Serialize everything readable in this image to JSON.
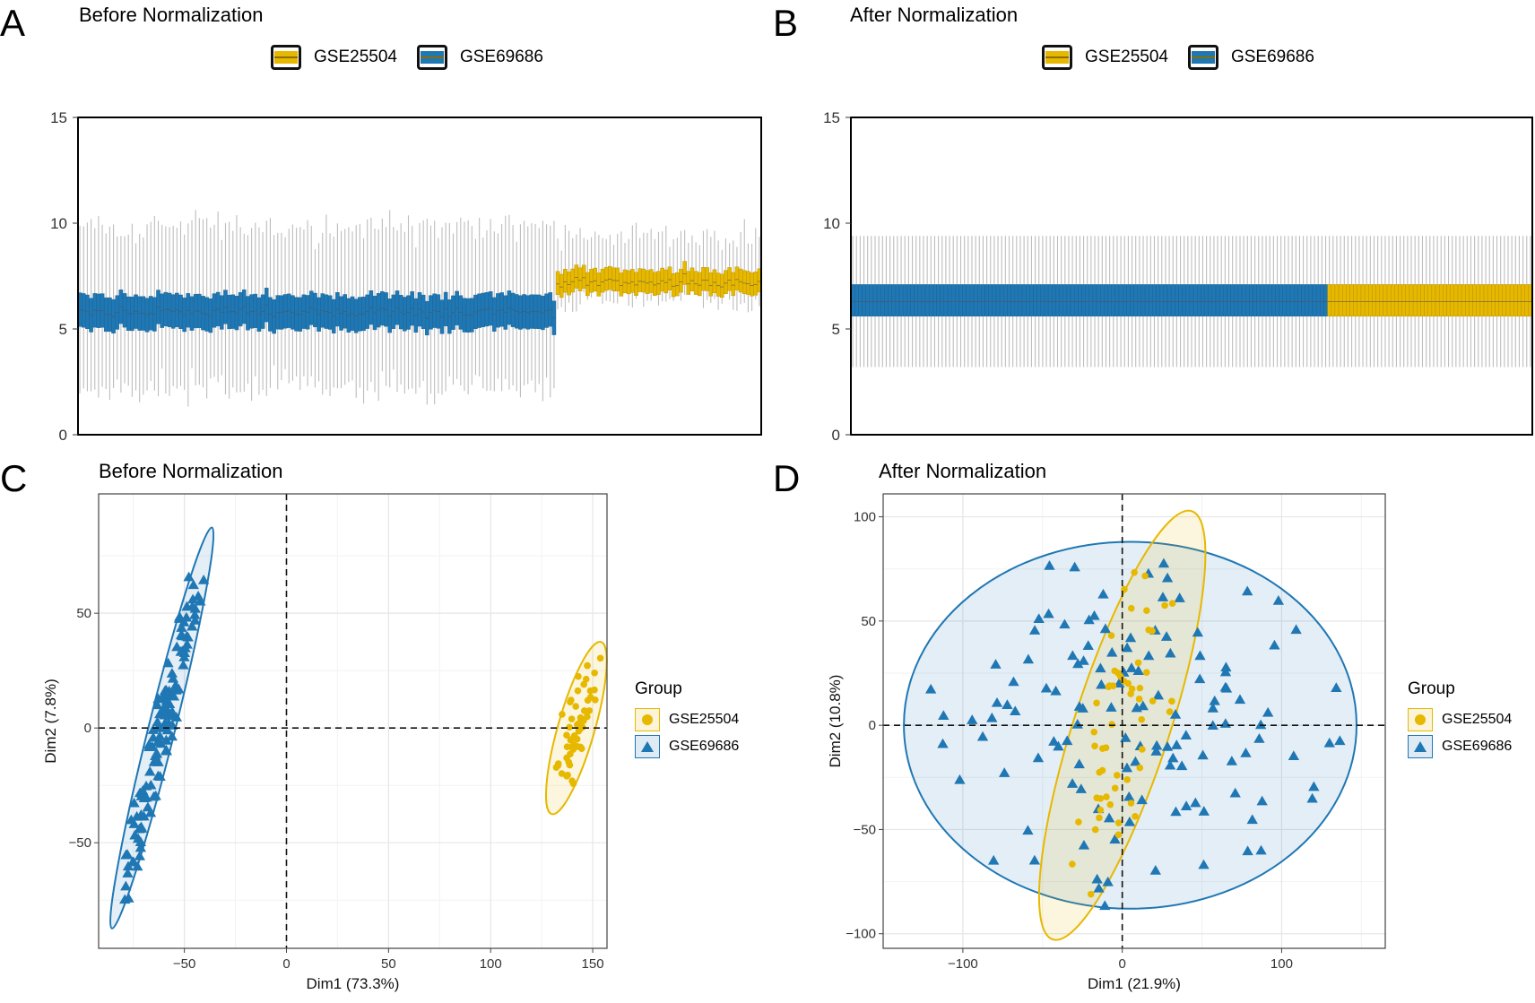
{
  "panels": {
    "a": {
      "letter": "A",
      "title": "Before Normalization"
    },
    "b": {
      "letter": "B",
      "title": "After Normalization"
    },
    "c": {
      "letter": "C",
      "title": "Before Normalization"
    },
    "d": {
      "letter": "D",
      "title": "After Normalization"
    }
  },
  "legend": {
    "items": [
      {
        "label": "GSE25504",
        "color": "#E7B800"
      },
      {
        "label": "GSE69686",
        "color": "#1F77B4"
      }
    ],
    "group_title": "Group"
  },
  "colors": {
    "yellow": "#E7B800",
    "blue": "#1F77B4",
    "whisker": "#BDBDBD"
  },
  "chart_data": [
    {
      "type": "boxplot",
      "title": "Before Normalization",
      "ylim": [
        0,
        15
      ],
      "yticks": [
        0,
        5,
        10,
        15
      ],
      "groups": [
        {
          "name": "GSE69686",
          "n_samples": 128,
          "median": 5.8,
          "q1": 5.0,
          "q3": 6.6,
          "whisker_low": 2.2,
          "whisker_high": 9.8
        },
        {
          "name": "GSE25504",
          "n_samples": 55,
          "median": 7.2,
          "q1": 6.7,
          "q3": 7.8,
          "whisker_low": 6.3,
          "whisker_high": 9.4
        }
      ]
    },
    {
      "type": "boxplot",
      "title": "After Normalization",
      "ylim": [
        0,
        15
      ],
      "yticks": [
        0,
        5,
        10,
        15
      ],
      "groups": [
        {
          "name": "GSE69686",
          "n_samples": 128,
          "median": 6.3,
          "q1": 5.6,
          "q3": 7.1,
          "whisker_low": 3.2,
          "whisker_high": 9.4
        },
        {
          "name": "GSE25504",
          "n_samples": 55,
          "median": 6.3,
          "q1": 5.6,
          "q3": 7.1,
          "whisker_low": 3.2,
          "whisker_high": 9.4
        }
      ]
    },
    {
      "type": "scatter",
      "title": "Before Normalization",
      "xlabel": "Dim1 (73.3%)",
      "ylabel": "Dim2 (7.8%)",
      "xlim": [
        -92,
        157
      ],
      "ylim": [
        -96,
        102
      ],
      "xticks": [
        -50,
        0,
        50,
        100,
        150
      ],
      "yticks": [
        -50,
        0,
        50
      ],
      "groups": [
        {
          "name": "GSE25504",
          "center": [
            142,
            0
          ],
          "n_points": 55,
          "ellipse": {
            "cx": 142,
            "cy": 0,
            "rx": 9,
            "ry": 39,
            "rotate": 16
          }
        },
        {
          "name": "GSE69686",
          "center": [
            -60,
            0
          ],
          "n_points": 128,
          "ellipse": {
            "cx": -61,
            "cy": 0,
            "rx": 6.5,
            "ry": 90,
            "rotate": 14
          }
        }
      ]
    },
    {
      "type": "scatter",
      "title": "After Normalization",
      "xlabel": "Dim1 (21.9%)",
      "ylabel": "Dim2 (10.8%)",
      "xlim": [
        -150,
        165
      ],
      "ylim": [
        -107,
        111
      ],
      "xticks": [
        -100,
        0,
        100
      ],
      "yticks": [
        -100,
        -50,
        0,
        50,
        100
      ],
      "groups": [
        {
          "name": "GSE25504",
          "center": [
            -3,
            8
          ],
          "n_points": 55,
          "ellipse": {
            "cx": 0,
            "cy": 0,
            "rx": 30,
            "ry": 108,
            "rotate": 18
          }
        },
        {
          "name": "GSE69686",
          "center": [
            0,
            0
          ],
          "n_points": 128,
          "ellipse": {
            "cx": 5,
            "cy": 0,
            "rx": 142,
            "ry": 88,
            "rotate": 0
          }
        }
      ]
    }
  ]
}
